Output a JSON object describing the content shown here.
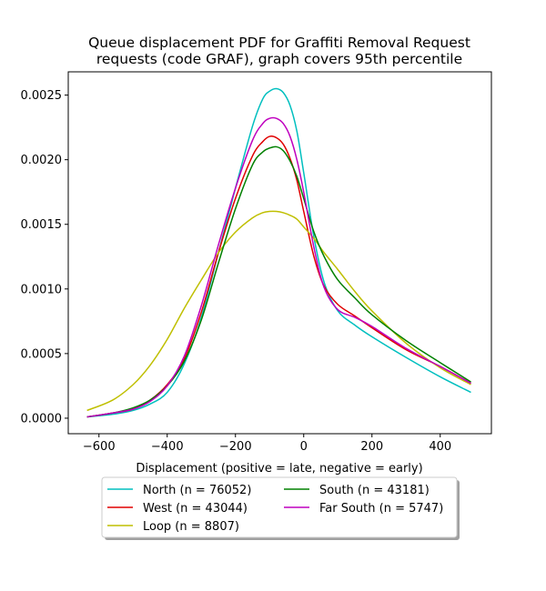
{
  "chart_data": {
    "type": "line",
    "title": [
      "Queue displacement PDF for Graffiti Removal Request",
      "requests (code GRAF), graph covers 95th percentile"
    ],
    "xlabel": "Displacement (positive = late, negative = early)",
    "ylabel": "",
    "xlim": [
      -690,
      550
    ],
    "ylim": [
      -0.00012,
      0.00268
    ],
    "x_ticks": [
      -600,
      -400,
      -200,
      0,
      200,
      400
    ],
    "x_tick_labels": [
      "−600",
      "−400",
      "−200",
      "0",
      "200",
      "400"
    ],
    "y_ticks": [
      0.0,
      0.0005,
      0.001,
      0.0015,
      0.002,
      0.0025
    ],
    "y_tick_labels": [
      "0.0000",
      "0.0005",
      "0.0010",
      "0.0015",
      "0.0020",
      "0.0025"
    ],
    "grid": false,
    "legend_position": "below",
    "series": [
      {
        "name": "North (n = 76052)",
        "color": "#00bfbf",
        "x": [
          -635,
          -560,
          -500,
          -450,
          -400,
          -350,
          -300,
          -250,
          -200,
          -150,
          -120,
          -100,
          -80,
          -60,
          -40,
          -20,
          0,
          30,
          60,
          100,
          150,
          200,
          300,
          400,
          490
        ],
        "y": [
          1e-05,
          3e-05,
          6e-05,
          0.00011,
          0.0002,
          0.00042,
          0.00078,
          0.00128,
          0.00178,
          0.00226,
          0.00247,
          0.00253,
          0.00255,
          0.00252,
          0.00242,
          0.00222,
          0.0019,
          0.0014,
          0.00105,
          0.00083,
          0.00072,
          0.00063,
          0.00047,
          0.00032,
          0.0002
        ]
      },
      {
        "name": "West (n = 43044)",
        "color": "#e00000",
        "x": [
          -635,
          -560,
          -500,
          -450,
          -400,
          -350,
          -300,
          -250,
          -200,
          -150,
          -120,
          -100,
          -80,
          -60,
          -40,
          -20,
          0,
          30,
          60,
          100,
          150,
          200,
          300,
          400,
          490
        ],
        "y": [
          1e-05,
          4e-05,
          7e-05,
          0.00014,
          0.00026,
          0.00046,
          0.00082,
          0.00128,
          0.0017,
          0.00203,
          0.00214,
          0.00218,
          0.00217,
          0.00212,
          0.00201,
          0.00184,
          0.0016,
          0.00125,
          0.00102,
          0.00088,
          0.00079,
          0.0007,
          0.00053,
          0.0004,
          0.00027
        ]
      },
      {
        "name": "Loop (n = 8807)",
        "color": "#bfbf00",
        "x": [
          -635,
          -560,
          -500,
          -450,
          -400,
          -350,
          -300,
          -250,
          -200,
          -150,
          -120,
          -100,
          -80,
          -60,
          -40,
          -20,
          0,
          30,
          60,
          100,
          150,
          200,
          300,
          400,
          490
        ],
        "y": [
          6e-05,
          0.00014,
          0.00026,
          0.00041,
          0.00061,
          0.00085,
          0.00107,
          0.00128,
          0.00144,
          0.00155,
          0.00159,
          0.0016,
          0.0016,
          0.00159,
          0.00157,
          0.00154,
          0.00148,
          0.00139,
          0.00128,
          0.00115,
          0.00098,
          0.00083,
          0.00058,
          0.00039,
          0.00026
        ]
      },
      {
        "name": "South (n = 43181)",
        "color": "#008000",
        "x": [
          -635,
          -560,
          -500,
          -450,
          -400,
          -350,
          -300,
          -250,
          -200,
          -150,
          -120,
          -100,
          -80,
          -60,
          -40,
          -20,
          0,
          30,
          60,
          100,
          150,
          200,
          300,
          400,
          490
        ],
        "y": [
          1e-05,
          4e-05,
          8e-05,
          0.00014,
          0.00025,
          0.00044,
          0.00076,
          0.0012,
          0.00162,
          0.00196,
          0.00206,
          0.00209,
          0.0021,
          0.00207,
          0.00199,
          0.00187,
          0.0017,
          0.00144,
          0.00125,
          0.00107,
          0.00093,
          0.0008,
          0.0006,
          0.00043,
          0.00028
        ]
      },
      {
        "name": "Far South (n = 5747)",
        "color": "#bf00bf",
        "x": [
          -635,
          -560,
          -500,
          -450,
          -400,
          -350,
          -300,
          -250,
          -200,
          -150,
          -120,
          -100,
          -80,
          -60,
          -40,
          -20,
          0,
          30,
          60,
          100,
          150,
          200,
          300,
          400,
          490
        ],
        "y": [
          1e-05,
          4e-05,
          7e-05,
          0.00013,
          0.00025,
          0.00048,
          0.00087,
          0.00134,
          0.00178,
          0.00215,
          0.00228,
          0.00232,
          0.00232,
          0.00228,
          0.00218,
          0.002,
          0.00175,
          0.00132,
          0.00101,
          0.00084,
          0.00078,
          0.00071,
          0.00054,
          0.0004,
          0.00027
        ]
      }
    ]
  }
}
